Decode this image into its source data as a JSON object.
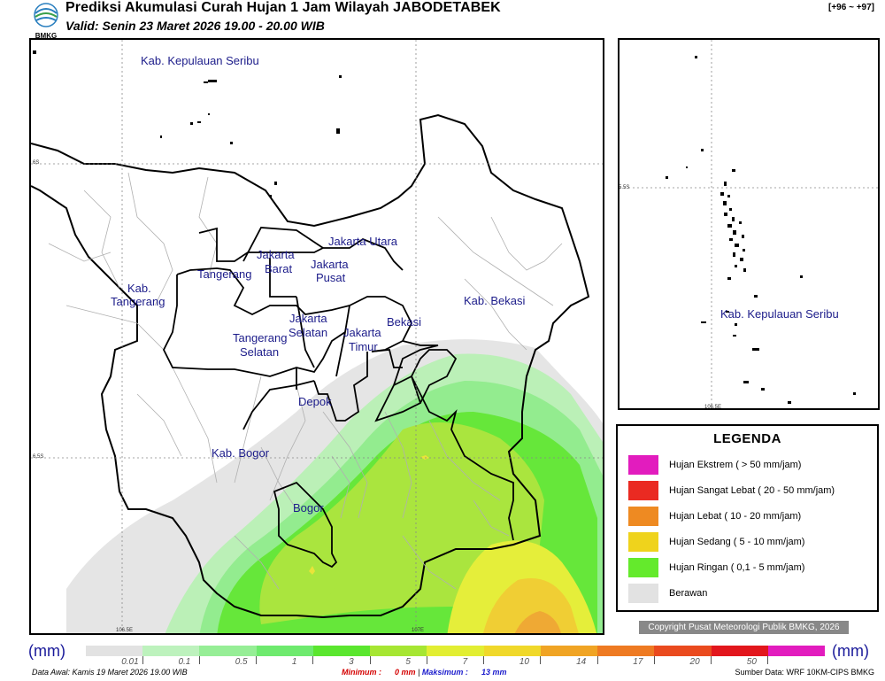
{
  "header": {
    "logo_text": "BMKG",
    "title": "Prediksi Akumulasi Curah Hujan 1 Jam Wilayah JABODETABEK",
    "valid": "Valid: Senin 23 Maret 2026 19.00 - 20.00 WIB",
    "forecast_range": "[+96 ~ +97]"
  },
  "main_map": {
    "regions": [
      "Kab. Kepulauan Seribu",
      "Jakarta Utara",
      "Jakarta",
      "Barat",
      "Jakarta",
      "Pusat",
      "Tangerang",
      "Kab.",
      "Tangerang",
      "Kab. Bekasi",
      "Jakarta",
      "Selatan",
      "Jakarta",
      "Timur",
      "Bekasi",
      "Tangerang",
      "Selatan",
      "Depok",
      "Kab. Bogor",
      "Bogor"
    ],
    "lat_ticks": [
      "6S",
      "6.5S"
    ],
    "lon_ticks": [
      "106.5E",
      "107E"
    ]
  },
  "inset_map": {
    "region": "Kab. Kepulauan Seribu",
    "lat_tick": "5.5S",
    "lon_tick": "106.5E"
  },
  "legend": {
    "title": "LEGENDA",
    "items": [
      {
        "label": "Hujan Ekstrem ( > 50 mm/jam)",
        "color": "#e21cbe"
      },
      {
        "label": "Hujan Sangat Lebat ( 20 - 50 mm/jam)",
        "color": "#ea2a22"
      },
      {
        "label": "Hujan Lebat ( 10 - 20 mm/jam)",
        "color": "#ee8a22"
      },
      {
        "label": "Hujan Sedang ( 5 - 10 mm/jam)",
        "color": "#efd31c"
      },
      {
        "label": "Hujan Ringan ( 0,1 - 5 mm/jam)",
        "color": "#64ea2c"
      },
      {
        "label": "Berawan",
        "color": "#e2e2e2"
      }
    ]
  },
  "copyright": "Copyright Pusat Meteorologi Publik BMKG, 2026",
  "colorbar": {
    "unit": "(mm)",
    "ticks": [
      "0.01",
      "0.1",
      "0.5",
      "1",
      "3",
      "5",
      "7",
      "10",
      "14",
      "17",
      "20",
      "50"
    ],
    "colors": [
      "#e2e2e2",
      "#bdf2bd",
      "#96ee96",
      "#6eea6e",
      "#5ae62e",
      "#a6e632",
      "#e2ee32",
      "#f0d82a",
      "#f0a424",
      "#ee7a22",
      "#ea4a1e",
      "#e2161c",
      "#e21cbe"
    ]
  },
  "footer": {
    "data_awal": "Data Awal: Kamis 19 Maret 2026 19.00 WIB",
    "minimum_label": "Minimum :",
    "minimum_value": "0 mm",
    "separator": "|",
    "maximum_label": "Maksimum :",
    "maximum_value": "13 mm",
    "source": "Sumber Data: WRF 10KM-CIPS BMKG"
  }
}
